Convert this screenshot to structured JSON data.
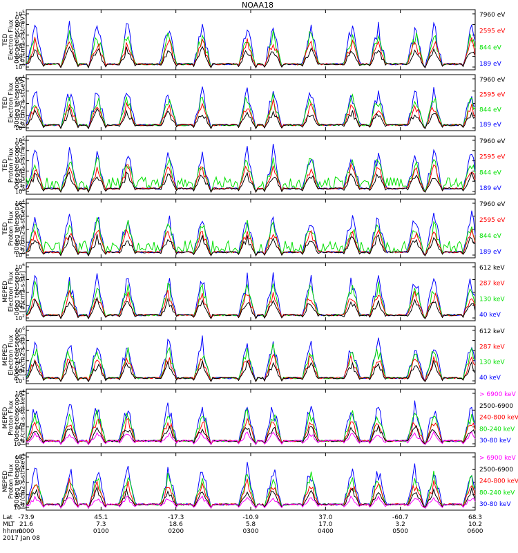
{
  "title": "NOAA18",
  "colors": {
    "black": "#000000",
    "red": "#ff0000",
    "green": "#00e000",
    "blue": "#0000ff",
    "magenta": "#ff00ff"
  },
  "chart_data": {
    "type": "line",
    "x_ticks": [
      {
        "lat": "-73.9",
        "mlt": "21.6",
        "hhmm": "0000"
      },
      {
        "lat": "45.1",
        "mlt": "7.3",
        "hhmm": "0100"
      },
      {
        "lat": "-17.3",
        "mlt": "18.6",
        "hhmm": "0200"
      },
      {
        "lat": "-10.9",
        "mlt": "5.8",
        "hhmm": "0300"
      },
      {
        "lat": "37.0",
        "mlt": "17.0",
        "hhmm": "0400"
      },
      {
        "lat": "-60.7",
        "mlt": "3.2",
        "hhmm": "0500"
      },
      {
        "lat": "68.3",
        "mlt": "10.2",
        "hhmm": "0600"
      }
    ],
    "x_row_labels": [
      "Lat",
      "MLT",
      "hhmm"
    ],
    "date_label": "2017 Jan 08",
    "panels": [
      {
        "ylabel": [
          "TED",
          "Electron Flux",
          "0deg telescope",
          "[#/cm2-s-str-eV]"
        ],
        "ticks": [
          "10^0",
          "10^1",
          "10^2",
          "10^3",
          "10^4",
          "10^5"
        ],
        "series": [
          {
            "name": "7960 eV",
            "color": "#000000"
          },
          {
            "name": "2595 eV",
            "color": "#ff0000"
          },
          {
            "name": "844 eV",
            "color": "#00e000"
          },
          {
            "name": "189 eV",
            "color": "#0000ff"
          }
        ]
      },
      {
        "ylabel": [
          "TED",
          "Electron Flux",
          "30deg telescope",
          "[#/cm2-s-str-eV]"
        ],
        "ticks": [
          "10^0",
          "10^1",
          "10^2",
          "10^3",
          "10^4"
        ],
        "series": [
          {
            "name": "7960 eV",
            "color": "#000000"
          },
          {
            "name": "2595 eV",
            "color": "#ff0000"
          },
          {
            "name": "844 eV",
            "color": "#00e000"
          },
          {
            "name": "189 eV",
            "color": "#0000ff"
          }
        ]
      },
      {
        "ylabel": [
          "TED",
          "Proton Flux",
          "0deg telescope",
          "[#/cm2-s-str-eV]"
        ],
        "ticks": [
          "10^0",
          "10^1",
          "10^2",
          "10^3",
          "10^4",
          "10^5"
        ],
        "series": [
          {
            "name": "7960 eV",
            "color": "#000000"
          },
          {
            "name": "2595 eV",
            "color": "#ff0000"
          },
          {
            "name": "844 eV",
            "color": "#00e000"
          },
          {
            "name": "189 eV",
            "color": "#0000ff"
          }
        ]
      },
      {
        "ylabel": [
          "TED",
          "Proton Flux",
          "30deg telescope",
          "[#/cm2-s-str-eV]"
        ],
        "ticks": [
          "10^0",
          "10^1",
          "10^2",
          "10^3",
          "10^4"
        ],
        "series": [
          {
            "name": "7960 eV",
            "color": "#000000"
          },
          {
            "name": "2595 eV",
            "color": "#ff0000"
          },
          {
            "name": "844 eV",
            "color": "#00e000"
          },
          {
            "name": "189 eV",
            "color": "#0000ff"
          }
        ]
      },
      {
        "ylabel": [
          "MEPED",
          "Electron Flux",
          "0deg telescope",
          "[#/cm2-s-str]"
        ],
        "ticks": [
          "10^2",
          "10^3",
          "10^4",
          "10^5",
          "10^6"
        ],
        "series": [
          {
            "name": "612 keV",
            "color": "#000000"
          },
          {
            "name": "287 keV",
            "color": "#ff0000"
          },
          {
            "name": "130 keV",
            "color": "#00e000"
          },
          {
            "name": "40 keV",
            "color": "#0000ff"
          }
        ]
      },
      {
        "ylabel": [
          "MEPED",
          "Electron Flux",
          "90deg telescope",
          "[#/cm2-s-str]"
        ],
        "ticks": [
          "10^1",
          "10^2",
          "10^3",
          "10^4",
          "10^5",
          "10^6"
        ],
        "series": [
          {
            "name": "612 keV",
            "color": "#000000"
          },
          {
            "name": "287 keV",
            "color": "#ff0000"
          },
          {
            "name": "130 keV",
            "color": "#00e000"
          },
          {
            "name": "40 keV",
            "color": "#0000ff"
          }
        ]
      },
      {
        "ylabel": [
          "MEPED",
          "Proton Flux",
          "0deg telescope",
          "[#/cm2-s-str-keV]"
        ],
        "ticks": [
          "10^-2",
          "10^0",
          "10^2",
          "10^4"
        ],
        "series": [
          {
            "name": "> 6900 keV",
            "color": "#ff00ff"
          },
          {
            "name": "2500-6900",
            "color": "#000000"
          },
          {
            "name": "240-800 keV",
            "color": "#ff0000"
          },
          {
            "name": "80-240 keV",
            "color": "#00e000"
          },
          {
            "name": "30-80 keV",
            "color": "#0000ff"
          }
        ]
      },
      {
        "ylabel": [
          "MEPED",
          "Proton Flux",
          "90deg telescope",
          "[#/cm2-s-str-keV]"
        ],
        "ticks": [
          "10^-2",
          "10^0",
          "10^2",
          "10^4",
          "10^6"
        ],
        "series": [
          {
            "name": "> 6900 keV",
            "color": "#ff00ff"
          },
          {
            "name": "2500-6900",
            "color": "#000000"
          },
          {
            "name": "240-800 keV",
            "color": "#ff0000"
          },
          {
            "name": "80-240 keV",
            "color": "#00e000"
          },
          {
            "name": "30-80 keV",
            "color": "#0000ff"
          }
        ]
      }
    ]
  }
}
